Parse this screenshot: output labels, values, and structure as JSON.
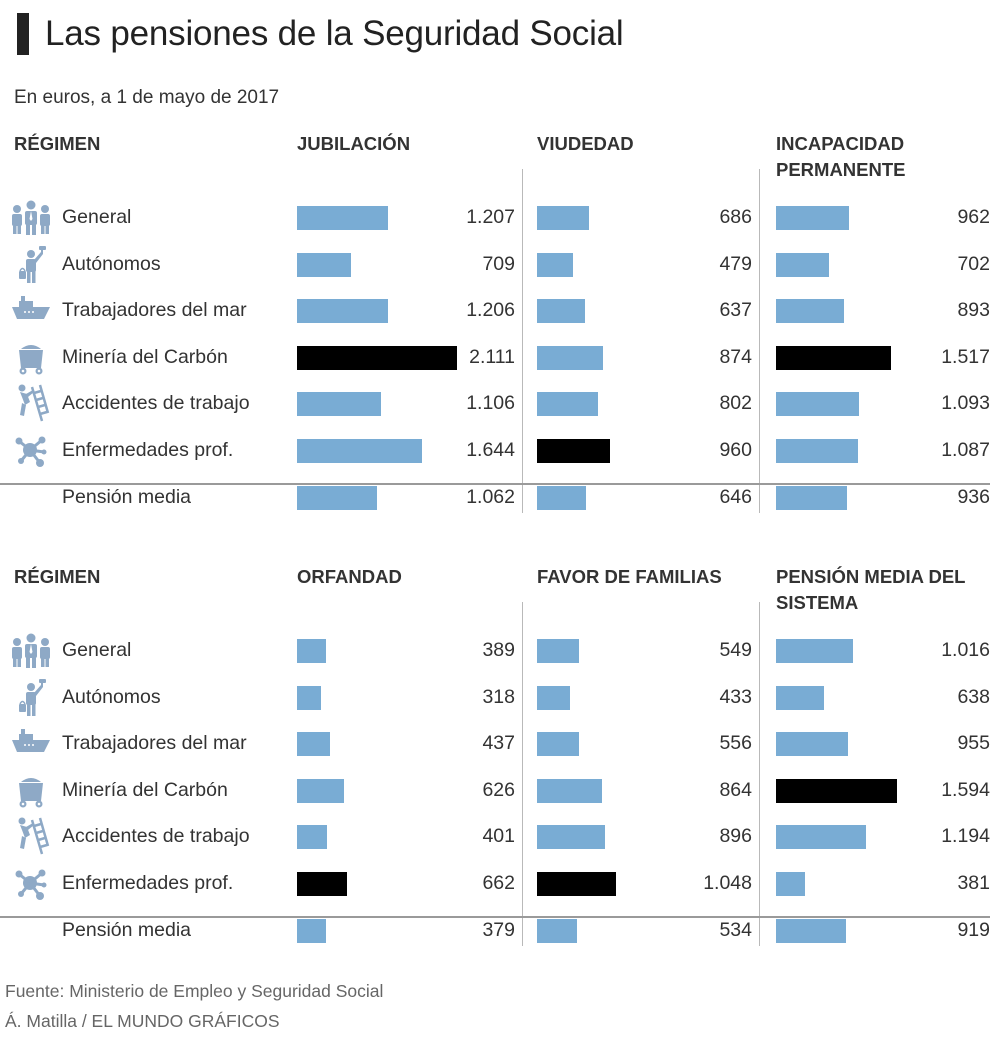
{
  "header": {
    "title": "Las pensiones de la Seguridad Social",
    "subtitle": "En euros, a 1 de mayo de 2017"
  },
  "colors": {
    "bar": "#79acd4",
    "highlight": "#000000",
    "icon": "#8ea9c6"
  },
  "categories": [
    {
      "label": "General",
      "icon": "people-group-icon"
    },
    {
      "label": "Autónomos",
      "icon": "painter-worker-icon"
    },
    {
      "label": "Trabajadores del mar",
      "icon": "ship-icon"
    },
    {
      "label": "Minería del Carbón",
      "icon": "mine-cart-icon"
    },
    {
      "label": "Accidentes de trabajo",
      "icon": "ladder-fall-icon"
    },
    {
      "label": "Enfermedades prof.",
      "icon": "virus-molecule-icon"
    },
    {
      "label": "Pensión media",
      "icon": null
    }
  ],
  "panels": [
    {
      "regimen_label": "RÉGIMEN",
      "columns": [
        {
          "title": "JUBILACIÓN",
          "values": [
            "1.207",
            "709",
            "1.206",
            "2.111",
            "1.106",
            "1.644",
            "1.062"
          ]
        },
        {
          "title": "VIUDEDAD",
          "values": [
            "686",
            "479",
            "637",
            "874",
            "802",
            "960",
            "646"
          ]
        },
        {
          "title": "INCAPACIDAD PERMANENTE",
          "values": [
            "962",
            "702",
            "893",
            "1.517",
            "1.093",
            "1.087",
            "936"
          ]
        }
      ]
    },
    {
      "regimen_label": "RÉGIMEN",
      "columns": [
        {
          "title": "ORFANDAD",
          "values": [
            "389",
            "318",
            "437",
            "626",
            "401",
            "662",
            "379"
          ]
        },
        {
          "title": "FAVOR DE FAMILIAS",
          "values": [
            "549",
            "433",
            "556",
            "864",
            "896",
            "1.048",
            "534"
          ]
        },
        {
          "title": "PENSIÓN MEDIA DEL SISTEMA",
          "values": [
            "1.016",
            "638",
            "955",
            "1.594",
            "1.194",
            "381",
            "919"
          ]
        }
      ]
    }
  ],
  "footer": {
    "source": "Fuente: Ministerio de Empleo y Seguridad Social",
    "credit": "Á. Matilla / EL MUNDO GRÁFICOS"
  },
  "chart_data": [
    {
      "type": "bar",
      "orientation": "horizontal",
      "title": "Las pensiones de la Seguridad Social",
      "subtitle": "En euros, a 1 de mayo de 2017",
      "categories": [
        "General",
        "Autónomos",
        "Trabajadores del mar",
        "Minería del Carbón",
        "Accidentes de trabajo",
        "Enfermedades prof.",
        "Pensión media"
      ],
      "series": [
        {
          "name": "Jubilación",
          "values": [
            1207,
            709,
            1206,
            2111,
            1106,
            1644,
            1062
          ],
          "highlight_index": 3
        },
        {
          "name": "Viudedad",
          "values": [
            686,
            479,
            637,
            874,
            802,
            960,
            646
          ],
          "highlight_index": 5
        },
        {
          "name": "Incapacidad permanente",
          "values": [
            962,
            702,
            893,
            1517,
            1093,
            1087,
            936
          ],
          "highlight_index": 3
        }
      ],
      "xlabel": "",
      "ylabel": "Régimen",
      "unit": "euros"
    },
    {
      "type": "bar",
      "orientation": "horizontal",
      "categories": [
        "General",
        "Autónomos",
        "Trabajadores del mar",
        "Minería del Carbón",
        "Accidentes de trabajo",
        "Enfermedades prof.",
        "Pensión media"
      ],
      "series": [
        {
          "name": "Orfandad",
          "values": [
            389,
            318,
            437,
            626,
            401,
            662,
            379
          ],
          "highlight_index": 5
        },
        {
          "name": "Favor de familias",
          "values": [
            549,
            433,
            556,
            864,
            896,
            1048,
            534
          ],
          "highlight_index": 5
        },
        {
          "name": "Pensión media del sistema",
          "values": [
            1016,
            638,
            955,
            1594,
            1194,
            381,
            919
          ],
          "highlight_index": 3
        }
      ],
      "xlabel": "",
      "ylabel": "Régimen",
      "unit": "euros",
      "source": "Fuente: Ministerio de Empleo y Seguridad Social"
    }
  ]
}
